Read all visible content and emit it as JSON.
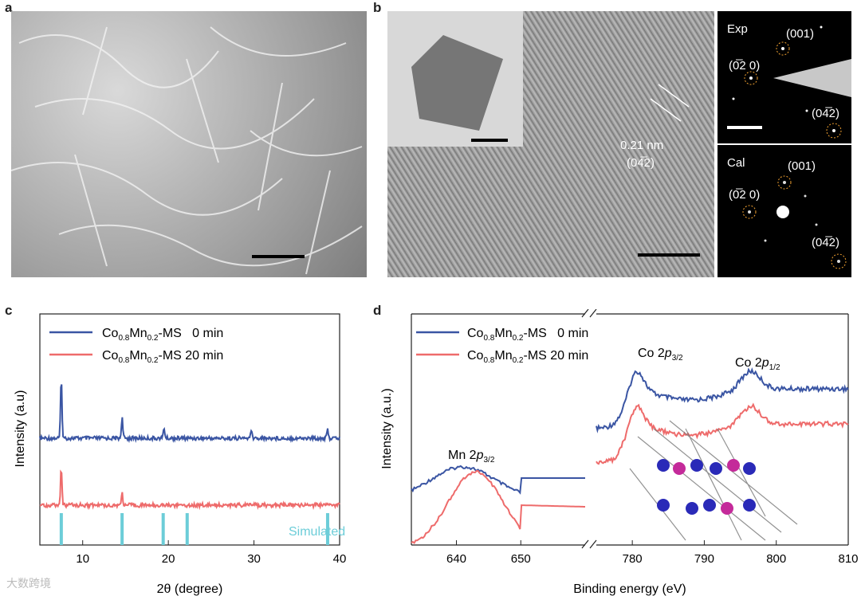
{
  "panel_labels": {
    "a": "a",
    "b": "b",
    "c": "c",
    "d": "d"
  },
  "panel_b": {
    "d_spacing": "0.21 nm",
    "d_plane": "(04̅2)",
    "saed_top": {
      "label": "Exp",
      "spots": [
        "(001)",
        "(0̅2 0)",
        "(04̅2)"
      ]
    },
    "saed_bottom": {
      "label": "Cal",
      "spots": [
        "(001)",
        "(0̅2 0)",
        "(04̅2)"
      ]
    }
  },
  "colors": {
    "blue": "#3a55a3",
    "red": "#ee6b6b",
    "cyan": "#6ccdd8"
  },
  "chart_data": [
    {
      "type": "line",
      "panel": "c",
      "xlabel": "2θ (degree)",
      "ylabel": "Intensity (a.u)",
      "xlim": [
        5,
        40
      ],
      "xticks": [
        10,
        20,
        30,
        40
      ],
      "series": [
        {
          "name_main": "Co",
          "sub1": "0.8",
          "mid": "Mn",
          "sub2": "0.2",
          "name_tail": "-MS   0 min",
          "color": "#3a55a3",
          "peaks": [
            [
              7.5,
              1.0
            ],
            [
              14.6,
              0.35
            ],
            [
              19.5,
              0.18
            ],
            [
              29.7,
              0.12
            ],
            [
              38.6,
              0.14
            ]
          ]
        },
        {
          "name_main": "Co",
          "sub1": "0.8",
          "mid": "Mn",
          "sub2": "0.2",
          "name_tail": "-MS 20 min",
          "color": "#ee6b6b",
          "peaks": [
            [
              7.5,
              0.9
            ],
            [
              14.6,
              0.3
            ]
          ]
        }
      ],
      "simulated": {
        "label": "Simulated",
        "positions": [
          7.5,
          14.6,
          19.4,
          22.2,
          38.6
        ]
      }
    },
    {
      "type": "line",
      "panel": "d",
      "xlabel": "Binding energy (eV)",
      "ylabel": "Intensity (a.u.)",
      "xticks": [
        640,
        650,
        780,
        790,
        800,
        810
      ],
      "segments": [
        [
          633,
          660
        ],
        [
          775,
          810
        ]
      ],
      "annotations": {
        "mn": {
          "text": "Mn 2",
          "sub": "3/2"
        },
        "co32": {
          "text": "Co 2",
          "sub": "3/2"
        },
        "co12": {
          "text": "Co 2",
          "sub": "1/2"
        }
      },
      "series": [
        {
          "name_main": "Co",
          "sub1": "0.8",
          "mid": "Mn",
          "sub2": "0.2",
          "name_tail": "-MS   0 min",
          "color": "#3a55a3"
        },
        {
          "name_main": "Co",
          "sub1": "0.8",
          "mid": "Mn",
          "sub2": "0.2",
          "name_tail": "-MS 20 min",
          "color": "#ee6b6b"
        }
      ]
    }
  ],
  "watermark": "大数跨境"
}
